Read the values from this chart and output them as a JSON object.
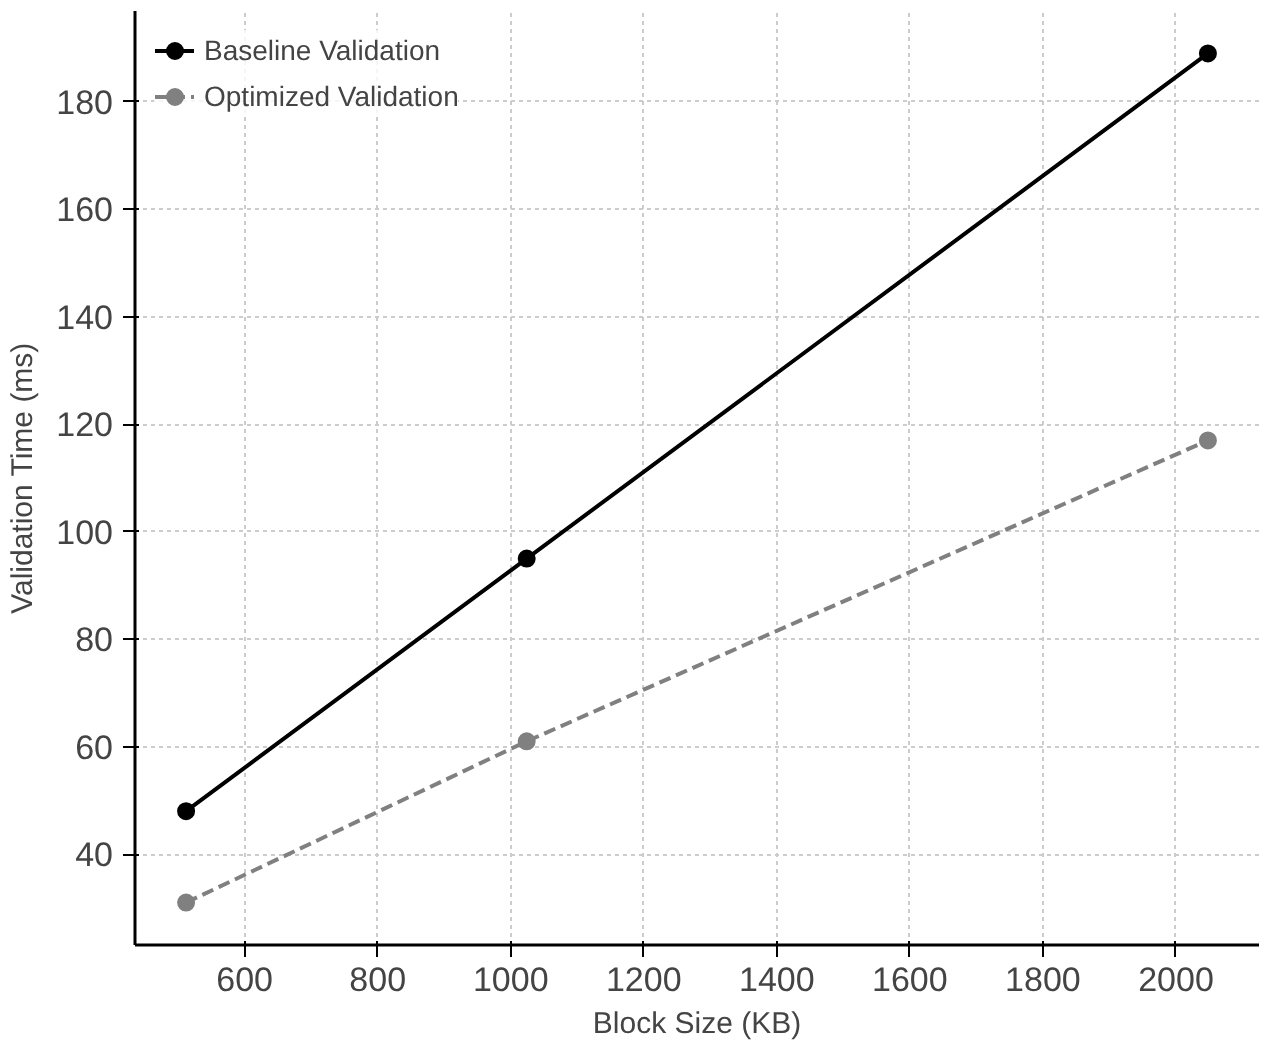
{
  "chart_data": {
    "type": "line",
    "xlabel": "Block Size (KB)",
    "ylabel": "Validation Time (ms)",
    "x": [
      512,
      1024,
      2048
    ],
    "series": [
      {
        "name": "Baseline Validation",
        "color": "#000000",
        "values": [
          48,
          95,
          189
        ],
        "line_style": "solid"
      },
      {
        "name": "Optimized Validation",
        "color": "#808080",
        "values": [
          31,
          61,
          117
        ],
        "line_style": "dashed"
      }
    ],
    "xlim": [
      435.2,
      2124.8
    ],
    "ylim": [
      23.1,
      196.9
    ],
    "xticks": [
      600,
      800,
      1000,
      1200,
      1400,
      1600,
      1800,
      2000
    ],
    "yticks": [
      40,
      60,
      80,
      100,
      120,
      140,
      160,
      180
    ],
    "grid": true,
    "legend": "top left",
    "marker": "circle"
  }
}
